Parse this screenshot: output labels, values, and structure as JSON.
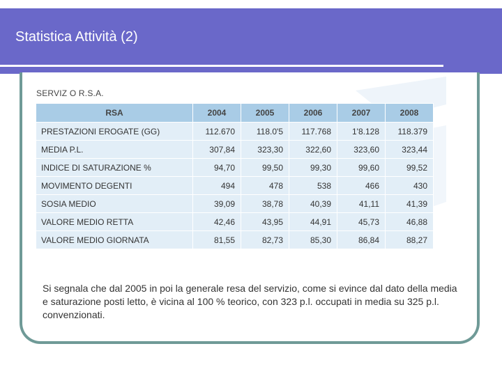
{
  "slide": {
    "title": "Statistica Attività (2)",
    "section_label": "SERVIZ O R.S.A.",
    "table": {
      "header": [
        "RSA",
        "2004",
        "2005",
        "2006",
        "2007",
        "2008"
      ],
      "rows": [
        {
          "label": "PRESTAZIONI EROGATE (GG)",
          "values": [
            "112.670",
            "118.0'5",
            "117.768",
            "1'8.128",
            "118.379"
          ]
        },
        {
          "label": "MEDIA P.L.",
          "values": [
            "307,84",
            "323,30",
            "322,60",
            "323,60",
            "323,44"
          ]
        },
        {
          "label": "INDICE DI SATURAZIONE %",
          "values": [
            "94,70",
            "99,50",
            "99,30",
            "99,60",
            "99,52"
          ]
        },
        {
          "label": "MOVIMENTO DEGENTI",
          "values": [
            "494",
            "478",
            "538",
            "466",
            "430"
          ]
        },
        {
          "label": "SOSIA MEDIO",
          "values": [
            "39,09",
            "38,78",
            "40,39",
            "41,11",
            "41,39"
          ]
        },
        {
          "label": "VALORE MEDIO RETTA",
          "values": [
            "42,46",
            "43,95",
            "44,91",
            "45,73",
            "46,88"
          ]
        },
        {
          "label": "VALORE MEDIO GIORNATA",
          "values": [
            "81,55",
            "82,73",
            "85,30",
            "86,84",
            "88,27"
          ]
        }
      ]
    },
    "body_text": "Si segnala che dal 2005 in poi la generale resa del servizio, come si evince dal dato della media e saturazione posti letto, è vicina al 100 % teorico, con 323 p.l. occupati in media su 325 p.l. convenzionati.",
    "colors": {
      "title_bar": "#6a68c9",
      "frame": "#6f9a97",
      "table_header": "#a9cce6",
      "table_cell": "#e2eef7"
    }
  }
}
